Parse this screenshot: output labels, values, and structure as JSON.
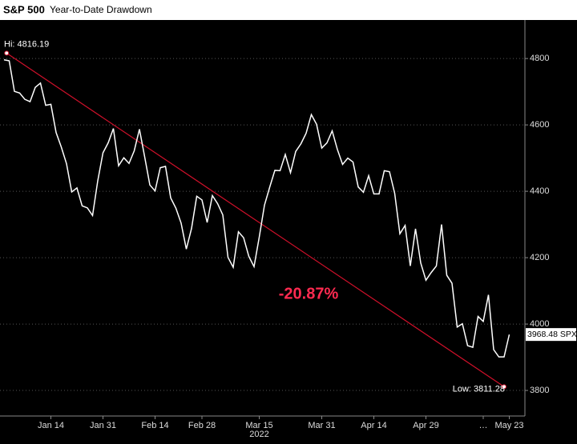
{
  "chart_data": {
    "type": "line",
    "title": "S&P 500",
    "subtitle": "Year-to-Date Drawdown",
    "categories": [
      null,
      null,
      null,
      null,
      null,
      null,
      null,
      null,
      null,
      "Jan 14",
      null,
      null,
      null,
      null,
      null,
      null,
      null,
      null,
      null,
      "Jan 31",
      null,
      null,
      null,
      null,
      null,
      null,
      null,
      null,
      null,
      "Feb 14",
      null,
      null,
      null,
      null,
      null,
      null,
      null,
      null,
      "Feb 28",
      null,
      null,
      null,
      null,
      null,
      null,
      null,
      null,
      null,
      null,
      "Mar 15",
      null,
      null,
      null,
      null,
      null,
      null,
      null,
      null,
      null,
      null,
      null,
      "Mar 31",
      null,
      null,
      null,
      null,
      null,
      null,
      null,
      null,
      null,
      "Apr 14",
      null,
      null,
      null,
      null,
      null,
      null,
      null,
      null,
      null,
      "Apr 29",
      null,
      null,
      null,
      null,
      null,
      null,
      null,
      null,
      null,
      null,
      "…",
      null,
      null,
      null,
      null,
      "May 23"
    ],
    "x_group_label": "2022",
    "series": [
      {
        "name": "SPX",
        "color": "#ffffff",
        "values": [
          4796,
          4793,
          4701,
          4696,
          4677,
          4670,
          4713,
          4726,
          4659,
          4662,
          4577,
          4533,
          4483,
          4398,
          4410,
          4356,
          4350,
          4327,
          4432,
          4516,
          4546,
          4589,
          4477,
          4501,
          4484,
          4522,
          4587,
          4504,
          4419,
          4401,
          4471,
          4475,
          4380,
          4349,
          4304,
          4226,
          4288,
          4385,
          4374,
          4306,
          4387,
          4363,
          4329,
          4201,
          4171,
          4278,
          4260,
          4204,
          4173,
          4262,
          4358,
          4412,
          4463,
          4462,
          4511,
          4456,
          4520,
          4543,
          4575,
          4631,
          4602,
          4530,
          4546,
          4582,
          4526,
          4481,
          4500,
          4488,
          4413,
          4397,
          4447,
          4392,
          4392,
          4462,
          4459,
          4394,
          4272,
          4297,
          4175,
          4287,
          4184,
          4132,
          4155,
          4175,
          4300,
          4147,
          4123,
          3991,
          4001,
          3935,
          3930,
          4023,
          4008,
          4088,
          3923,
          3901,
          3901,
          3968.48
        ]
      }
    ],
    "last_value_label": "3968.48 SPX",
    "high": {
      "value": 4816.19,
      "label": "Hi: 4816.19"
    },
    "low": {
      "value": 3811.28,
      "label": "Low: 3811.28"
    },
    "trend_color": "#d0102a",
    "drawdown_label": "-20.87%",
    "drawdown_color": "#ff2a50",
    "ylim": [
      3723,
      4916
    ],
    "yticks": [
      3800,
      4000,
      4200,
      4400,
      4600,
      4800
    ],
    "grid": true
  }
}
